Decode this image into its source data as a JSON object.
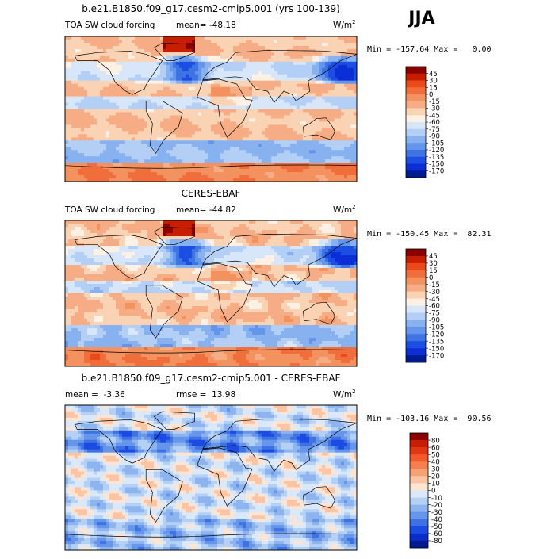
{
  "season": "JJA",
  "chart_data": [
    {
      "type": "heatmap",
      "title": "b.e21.B1850.f09_g17.cesm2-cmip5.001 (yrs 100-139)",
      "variable": "TOA SW cloud forcing",
      "units_base": "W/m",
      "units_exp": "2",
      "stats_left": "mean= -48.18",
      "stats_right": "",
      "minmax": "Min = -157.64 Max =   0.00",
      "colorbar": {
        "labels": [
          "45",
          "30",
          "15",
          "0",
          "-15",
          "-30",
          "-45",
          "-60",
          "-75",
          "-90",
          "-105",
          "-120",
          "-135",
          "-150",
          "-170"
        ],
        "colors": [
          "#8b0000",
          "#c81e00",
          "#ea4a19",
          "#f06e3c",
          "#f3925e",
          "#f6ad85",
          "#fad3b4",
          "#fdf0e4",
          "#d7e7f9",
          "#b3cff6",
          "#88b2ef",
          "#6395ea",
          "#3e73e3",
          "#1c4ee4",
          "#0b2ed6",
          "#001a8f"
        ]
      }
    },
    {
      "type": "heatmap",
      "title": "CERES-EBAF",
      "variable": "TOA SW cloud forcing",
      "units_base": "W/m",
      "units_exp": "2",
      "stats_left": "mean= -44.82",
      "stats_right": "",
      "minmax": "Min = -150.45 Max =  82.31",
      "colorbar": {
        "labels": [
          "45",
          "30",
          "15",
          "0",
          "-15",
          "-30",
          "-45",
          "-60",
          "-75",
          "-90",
          "-105",
          "-120",
          "-135",
          "-150",
          "-170"
        ],
        "colors": [
          "#8b0000",
          "#c81e00",
          "#ea4a19",
          "#f06e3c",
          "#f3925e",
          "#f6ad85",
          "#fad3b4",
          "#fdf0e4",
          "#d7e7f9",
          "#b3cff6",
          "#88b2ef",
          "#6395ea",
          "#3e73e3",
          "#1c4ee4",
          "#0b2ed6",
          "#001a8f"
        ]
      }
    },
    {
      "type": "heatmap",
      "title": "b.e21.B1850.f09_g17.cesm2-cmip5.001 - CERES-EBAF",
      "variable": "",
      "units_base": "W/m",
      "units_exp": "2",
      "stats_left": "mean =  -3.36",
      "stats_right": "rmse =  13.98",
      "minmax": "Min = -103.16 Max =  90.56",
      "colorbar": {
        "labels": [
          "80",
          "60",
          "50",
          "40",
          "30",
          "20",
          "10",
          "0",
          "-10",
          "-20",
          "-30",
          "-40",
          "-50",
          "-60",
          "-80"
        ],
        "colors": [
          "#8b0000",
          "#c81e00",
          "#e03614",
          "#f25a2c",
          "#f5804f",
          "#f7a275",
          "#fbc5a5",
          "#fde4d3",
          "#d9e8fa",
          "#b5d0f5",
          "#8db4ef",
          "#6596e9",
          "#3e72e3",
          "#1c4be3",
          "#0a2cc8",
          "#001a8f"
        ]
      }
    }
  ]
}
